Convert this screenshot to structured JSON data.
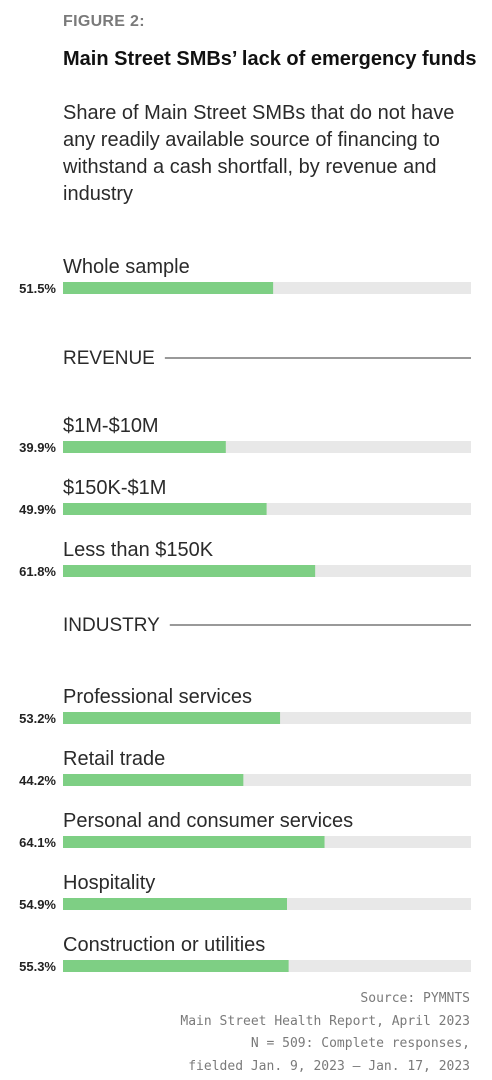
{
  "figure_label": "FIGURE 2:",
  "title": "Main Street SMBs’ lack of emergency funds",
  "subtitle": "Share of Main Street SMBs that do not have any readily available source of financing to withstand a cash shortfall, by revenue and industry",
  "chart_data": {
    "type": "bar",
    "orientation": "horizontal",
    "xlim": [
      0,
      100
    ],
    "value_suffix": "%",
    "colors": {
      "bar": "#7ecf84",
      "track": "#e8e8e8",
      "rule": "#333333"
    },
    "groups": [
      {
        "heading": "",
        "categories": [
          "Whole sample"
        ],
        "values": [
          51.5
        ],
        "labels": [
          "51.5%"
        ]
      },
      {
        "heading": "REVENUE",
        "categories": [
          "$1M-$10M",
          "$150K-$1M",
          "Less than $150K"
        ],
        "values": [
          39.9,
          49.9,
          61.8
        ],
        "labels": [
          "39.9%",
          "49.9%",
          "61.8%"
        ]
      },
      {
        "heading": "INDUSTRY",
        "categories": [
          "Professional services",
          "Retail trade",
          "Personal and consumer services",
          "Hospitality",
          "Construction or utilities"
        ],
        "values": [
          53.2,
          44.2,
          64.1,
          54.9,
          55.3
        ],
        "labels": [
          "53.2%",
          "44.2%",
          "64.1%",
          "54.9%",
          "55.3%"
        ]
      }
    ]
  },
  "source": [
    "Source: PYMNTS",
    "Main Street Health Report, April 2023",
    "N = 509: Complete responses,",
    "fielded Jan. 9, 2023 – Jan. 17, 2023"
  ]
}
